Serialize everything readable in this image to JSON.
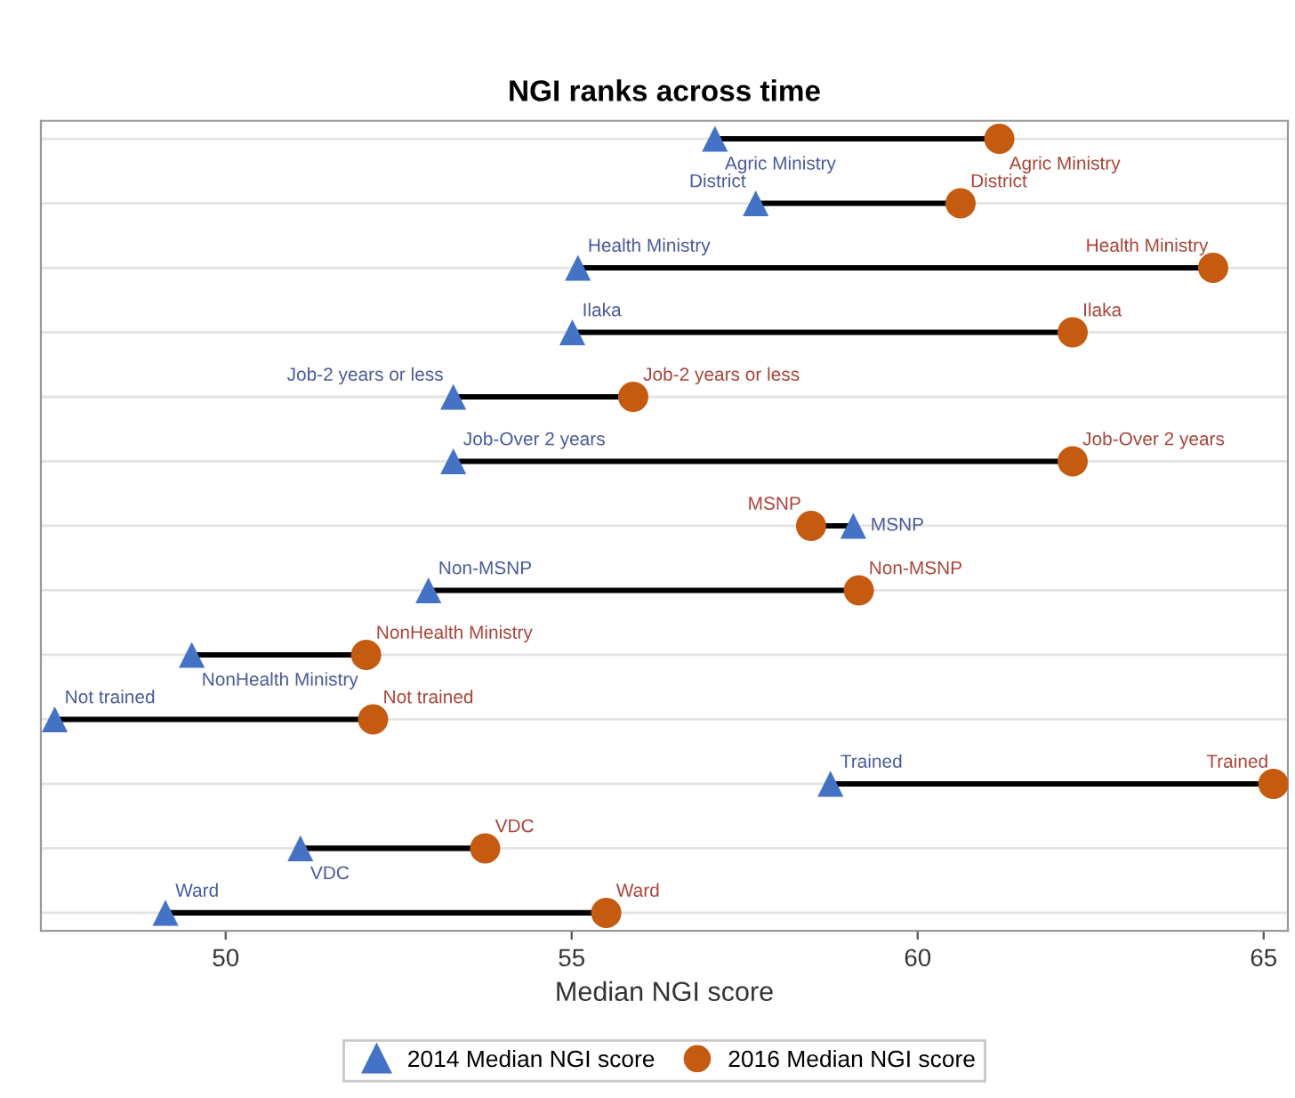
{
  "chart_data": {
    "type": "scatter",
    "title": "NGI ranks across time",
    "xlabel": "Median NGI score",
    "orientation": "horizontal",
    "categories": [
      "Agric Ministry",
      "District",
      "Health Ministry",
      "Ilaka",
      "Job-2 years or less",
      "Job-Over 2 years",
      "MSNP",
      "Non-MSNP",
      "NonHealth Ministry",
      "Not trained",
      "Trained",
      "VDC",
      "Ward"
    ],
    "series": [
      {
        "name": "2014 Median NGI score",
        "color": "#4472c4",
        "marker": "triangle",
        "values": [
          57.07,
          57.66,
          55.09,
          55.01,
          53.29,
          53.29,
          59.07,
          52.93,
          49.51,
          47.53,
          58.74,
          51.08,
          49.13
        ]
      },
      {
        "name": "2016 Median NGI score",
        "color": "#c55a11",
        "marker": "circle",
        "values": [
          61.18,
          60.62,
          64.27,
          62.24,
          55.89,
          62.24,
          58.46,
          59.15,
          52.03,
          52.13,
          65.14,
          53.75,
          55.5
        ]
      }
    ],
    "xlim": [
      47.33,
      65.35
    ],
    "xticks": [
      50,
      55,
      60,
      65
    ],
    "grid": "y",
    "legend": "bottom",
    "tick_labels": "x"
  }
}
